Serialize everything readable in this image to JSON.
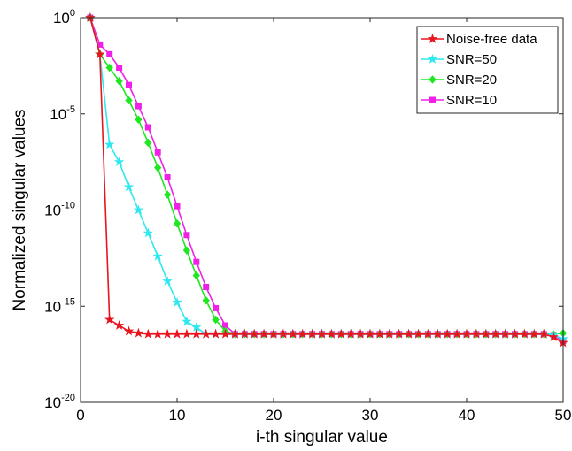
{
  "chart_data": {
    "type": "line",
    "title": "",
    "xlabel": "i-th singular value",
    "ylabel": "Normalized singular values",
    "xlim": [
      0,
      50
    ],
    "ylim_log10": [
      -20,
      0
    ],
    "y_scale": "log",
    "x_ticks": [
      "0",
      "10",
      "20",
      "30",
      "40",
      "50"
    ],
    "y_ticks": [
      {
        "base": "10",
        "exp": "0"
      },
      {
        "base": "10",
        "exp": "-5"
      },
      {
        "base": "10",
        "exp": "-10"
      },
      {
        "base": "10",
        "exp": "-15"
      },
      {
        "base": "10",
        "exp": "-20"
      }
    ],
    "grid": false,
    "legend_position": "top-right",
    "x": [
      1,
      2,
      3,
      4,
      5,
      6,
      7,
      8,
      9,
      10,
      11,
      12,
      13,
      14,
      15,
      16,
      17,
      18,
      19,
      20,
      21,
      22,
      23,
      24,
      25,
      26,
      27,
      28,
      29,
      30,
      31,
      32,
      33,
      34,
      35,
      36,
      37,
      38,
      39,
      40,
      41,
      42,
      43,
      44,
      45,
      46,
      47,
      48,
      49,
      50
    ],
    "series": [
      {
        "name": "Noise-free data",
        "color": "#e8141e",
        "marker": "star",
        "log10_values": [
          0,
          -1.9,
          -15.7,
          -16.0,
          -16.3,
          -16.4,
          -16.45,
          -16.45,
          -16.45,
          -16.45,
          -16.45,
          -16.45,
          -16.45,
          -16.45,
          -16.45,
          -16.45,
          -16.45,
          -16.45,
          -16.45,
          -16.45,
          -16.45,
          -16.45,
          -16.45,
          -16.45,
          -16.45,
          -16.45,
          -16.45,
          -16.45,
          -16.45,
          -16.45,
          -16.45,
          -16.45,
          -16.45,
          -16.45,
          -16.45,
          -16.45,
          -16.45,
          -16.45,
          -16.45,
          -16.45,
          -16.45,
          -16.45,
          -16.45,
          -16.45,
          -16.45,
          -16.45,
          -16.45,
          -16.45,
          -16.6,
          -16.9
        ]
      },
      {
        "name": "SNR=50",
        "color": "#2ee8f0",
        "marker": "star",
        "log10_values": [
          0,
          -1.9,
          -6.6,
          -7.5,
          -8.8,
          -10.0,
          -11.2,
          -12.4,
          -13.7,
          -14.8,
          -15.8,
          -16.1,
          -16.45,
          -16.45,
          -16.45,
          -16.45,
          -16.45,
          -16.45,
          -16.45,
          -16.45,
          -16.45,
          -16.45,
          -16.45,
          -16.45,
          -16.45,
          -16.45,
          -16.45,
          -16.45,
          -16.45,
          -16.45,
          -16.45,
          -16.45,
          -16.45,
          -16.45,
          -16.45,
          -16.45,
          -16.45,
          -16.45,
          -16.45,
          -16.45,
          -16.45,
          -16.45,
          -16.45,
          -16.45,
          -16.45,
          -16.45,
          -16.45,
          -16.45,
          -16.5,
          -16.7
        ]
      },
      {
        "name": "SNR=20",
        "color": "#1fe820",
        "marker": "diamond",
        "log10_values": [
          0,
          -1.9,
          -2.6,
          -3.3,
          -4.3,
          -5.3,
          -6.5,
          -7.8,
          -9.2,
          -10.7,
          -12.1,
          -13.4,
          -14.7,
          -15.7,
          -16.3,
          -16.45,
          -16.45,
          -16.45,
          -16.45,
          -16.45,
          -16.45,
          -16.45,
          -16.45,
          -16.45,
          -16.45,
          -16.45,
          -16.45,
          -16.45,
          -16.45,
          -16.45,
          -16.45,
          -16.45,
          -16.45,
          -16.45,
          -16.45,
          -16.45,
          -16.45,
          -16.45,
          -16.45,
          -16.45,
          -16.45,
          -16.45,
          -16.45,
          -16.45,
          -16.45,
          -16.45,
          -16.45,
          -16.45,
          -16.45,
          -16.4
        ]
      },
      {
        "name": "SNR=10",
        "color": "#f020e8",
        "marker": "square",
        "log10_values": [
          0,
          -1.4,
          -1.9,
          -2.6,
          -3.5,
          -4.6,
          -5.7,
          -7.0,
          -8.3,
          -9.8,
          -11.3,
          -12.7,
          -14.0,
          -15.1,
          -16.0,
          -16.45,
          -16.45,
          -16.45,
          -16.45,
          -16.45,
          -16.45,
          -16.45,
          -16.45,
          -16.45,
          -16.45,
          -16.45,
          -16.45,
          -16.45,
          -16.45,
          -16.45,
          -16.45,
          -16.45,
          -16.45,
          -16.45,
          -16.45,
          -16.45,
          -16.45,
          -16.45,
          -16.45,
          -16.45,
          -16.45,
          -16.45,
          -16.45,
          -16.45,
          -16.45,
          -16.45,
          -16.45,
          -16.45,
          -16.5,
          -16.8
        ]
      }
    ]
  }
}
